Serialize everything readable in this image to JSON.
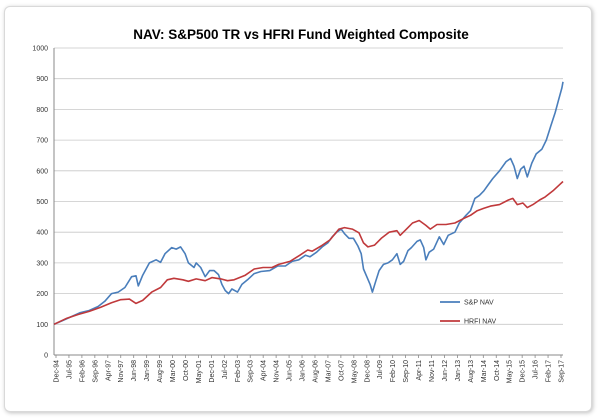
{
  "chart_data": {
    "type": "line",
    "title": "NAV: S&P500 TR vs HFRI Fund Weighted Composite",
    "xlabel": "",
    "ylabel": "",
    "ylim": [
      0,
      1000
    ],
    "y_ticks": [
      0,
      100,
      200,
      300,
      400,
      500,
      600,
      700,
      800,
      900,
      1000
    ],
    "x_ticks": [
      "Dec-94",
      "Jul-95",
      "Feb-96",
      "Sep-96",
      "Apr-97",
      "Nov-97",
      "Jun-98",
      "Jan-99",
      "Aug-99",
      "Mar-00",
      "Oct-00",
      "May-01",
      "Dec-01",
      "Jul-02",
      "Feb-03",
      "Sep-03",
      "Apr-04",
      "Nov-04",
      "Jun-05",
      "Jan-06",
      "Aug-06",
      "Mar-07",
      "Oct-07",
      "May-08",
      "Dec-08",
      "Jul-09",
      "Feb-10",
      "Sep-10",
      "Apr-11",
      "Nov-11",
      "Jun-12",
      "Jan-13",
      "Aug-13",
      "Mar-14",
      "Oct-14",
      "May-15",
      "Dec-15",
      "Jul-16",
      "Feb-17",
      "Sep-17"
    ],
    "x_range": [
      1994.92,
      2017.75
    ],
    "legend_position": "bottom-right",
    "series": [
      {
        "name": "S&P NAV",
        "color": "#4a7ebb",
        "points": [
          [
            1994.92,
            100
          ],
          [
            1995.3,
            112
          ],
          [
            1995.7,
            125
          ],
          [
            1996.1,
            138
          ],
          [
            1996.5,
            145
          ],
          [
            1996.9,
            158
          ],
          [
            1997.2,
            175
          ],
          [
            1997.5,
            200
          ],
          [
            1997.8,
            205
          ],
          [
            1998.1,
            220
          ],
          [
            1998.4,
            255
          ],
          [
            1998.6,
            258
          ],
          [
            1998.7,
            225
          ],
          [
            1998.9,
            260
          ],
          [
            1999.2,
            300
          ],
          [
            1999.5,
            310
          ],
          [
            1999.7,
            302
          ],
          [
            1999.9,
            330
          ],
          [
            2000.2,
            350
          ],
          [
            2000.4,
            345
          ],
          [
            2000.6,
            352
          ],
          [
            2000.8,
            330
          ],
          [
            2000.95,
            300
          ],
          [
            2001.2,
            285
          ],
          [
            2001.3,
            300
          ],
          [
            2001.5,
            285
          ],
          [
            2001.7,
            255
          ],
          [
            2001.9,
            275
          ],
          [
            2002.1,
            275
          ],
          [
            2002.3,
            262
          ],
          [
            2002.45,
            230
          ],
          [
            2002.6,
            210
          ],
          [
            2002.75,
            200
          ],
          [
            2002.9,
            215
          ],
          [
            2003.15,
            205
          ],
          [
            2003.35,
            230
          ],
          [
            2003.6,
            245
          ],
          [
            2003.9,
            265
          ],
          [
            2004.2,
            272
          ],
          [
            2004.6,
            275
          ],
          [
            2004.95,
            290
          ],
          [
            2005.3,
            290
          ],
          [
            2005.6,
            305
          ],
          [
            2005.9,
            310
          ],
          [
            2006.2,
            325
          ],
          [
            2006.4,
            320
          ],
          [
            2006.7,
            335
          ],
          [
            2006.95,
            352
          ],
          [
            2007.2,
            365
          ],
          [
            2007.4,
            385
          ],
          [
            2007.6,
            400
          ],
          [
            2007.8,
            410
          ],
          [
            2007.95,
            395
          ],
          [
            2008.15,
            380
          ],
          [
            2008.35,
            380
          ],
          [
            2008.55,
            355
          ],
          [
            2008.7,
            330
          ],
          [
            2008.8,
            280
          ],
          [
            2008.95,
            255
          ],
          [
            2009.1,
            230
          ],
          [
            2009.2,
            205
          ],
          [
            2009.35,
            240
          ],
          [
            2009.5,
            275
          ],
          [
            2009.7,
            295
          ],
          [
            2009.9,
            300
          ],
          [
            2010.1,
            310
          ],
          [
            2010.3,
            330
          ],
          [
            2010.45,
            295
          ],
          [
            2010.6,
            305
          ],
          [
            2010.8,
            340
          ],
          [
            2010.95,
            350
          ],
          [
            2011.2,
            370
          ],
          [
            2011.35,
            375
          ],
          [
            2011.5,
            350
          ],
          [
            2011.6,
            310
          ],
          [
            2011.75,
            335
          ],
          [
            2011.95,
            345
          ],
          [
            2012.2,
            385
          ],
          [
            2012.4,
            360
          ],
          [
            2012.6,
            390
          ],
          [
            2012.9,
            400
          ],
          [
            2013.1,
            430
          ],
          [
            2013.4,
            455
          ],
          [
            2013.6,
            470
          ],
          [
            2013.8,
            510
          ],
          [
            2014.0,
            520
          ],
          [
            2014.2,
            535
          ],
          [
            2014.4,
            555
          ],
          [
            2014.6,
            575
          ],
          [
            2014.9,
            600
          ],
          [
            2015.2,
            630
          ],
          [
            2015.4,
            640
          ],
          [
            2015.55,
            615
          ],
          [
            2015.7,
            575
          ],
          [
            2015.85,
            605
          ],
          [
            2016.0,
            615
          ],
          [
            2016.15,
            580
          ],
          [
            2016.35,
            625
          ],
          [
            2016.55,
            655
          ],
          [
            2016.8,
            670
          ],
          [
            2017.0,
            700
          ],
          [
            2017.2,
            745
          ],
          [
            2017.4,
            790
          ],
          [
            2017.55,
            830
          ],
          [
            2017.7,
            870
          ],
          [
            2017.75,
            890
          ]
        ]
      },
      {
        "name": "HRFI NAV",
        "color": "#c0393b",
        "points": [
          [
            1994.92,
            100
          ],
          [
            1995.5,
            120
          ],
          [
            1996.0,
            132
          ],
          [
            1996.5,
            142
          ],
          [
            1997.0,
            155
          ],
          [
            1997.5,
            170
          ],
          [
            1997.9,
            180
          ],
          [
            1998.3,
            182
          ],
          [
            1998.6,
            168
          ],
          [
            1998.9,
            178
          ],
          [
            1999.3,
            205
          ],
          [
            1999.7,
            220
          ],
          [
            2000.0,
            245
          ],
          [
            2000.3,
            250
          ],
          [
            2000.7,
            245
          ],
          [
            2000.95,
            240
          ],
          [
            2001.3,
            248
          ],
          [
            2001.7,
            242
          ],
          [
            2002.0,
            252
          ],
          [
            2002.4,
            248
          ],
          [
            2002.7,
            242
          ],
          [
            2003.0,
            245
          ],
          [
            2003.5,
            260
          ],
          [
            2003.9,
            280
          ],
          [
            2004.3,
            285
          ],
          [
            2004.7,
            285
          ],
          [
            2005.0,
            295
          ],
          [
            2005.5,
            305
          ],
          [
            2005.95,
            325
          ],
          [
            2006.3,
            342
          ],
          [
            2006.5,
            338
          ],
          [
            2006.9,
            355
          ],
          [
            2007.3,
            375
          ],
          [
            2007.7,
            410
          ],
          [
            2007.95,
            415
          ],
          [
            2008.3,
            410
          ],
          [
            2008.6,
            398
          ],
          [
            2008.8,
            365
          ],
          [
            2009.0,
            352
          ],
          [
            2009.3,
            358
          ],
          [
            2009.6,
            380
          ],
          [
            2009.95,
            400
          ],
          [
            2010.3,
            405
          ],
          [
            2010.45,
            390
          ],
          [
            2010.8,
            415
          ],
          [
            2011.0,
            430
          ],
          [
            2011.3,
            438
          ],
          [
            2011.6,
            422
          ],
          [
            2011.8,
            410
          ],
          [
            2012.1,
            425
          ],
          [
            2012.5,
            425
          ],
          [
            2012.9,
            430
          ],
          [
            2013.3,
            445
          ],
          [
            2013.6,
            455
          ],
          [
            2013.9,
            470
          ],
          [
            2014.2,
            478
          ],
          [
            2014.5,
            485
          ],
          [
            2014.9,
            490
          ],
          [
            2015.3,
            505
          ],
          [
            2015.5,
            510
          ],
          [
            2015.7,
            490
          ],
          [
            2015.95,
            495
          ],
          [
            2016.15,
            480
          ],
          [
            2016.4,
            490
          ],
          [
            2016.7,
            505
          ],
          [
            2016.95,
            515
          ],
          [
            2017.3,
            535
          ],
          [
            2017.6,
            555
          ],
          [
            2017.75,
            565
          ]
        ]
      }
    ]
  }
}
